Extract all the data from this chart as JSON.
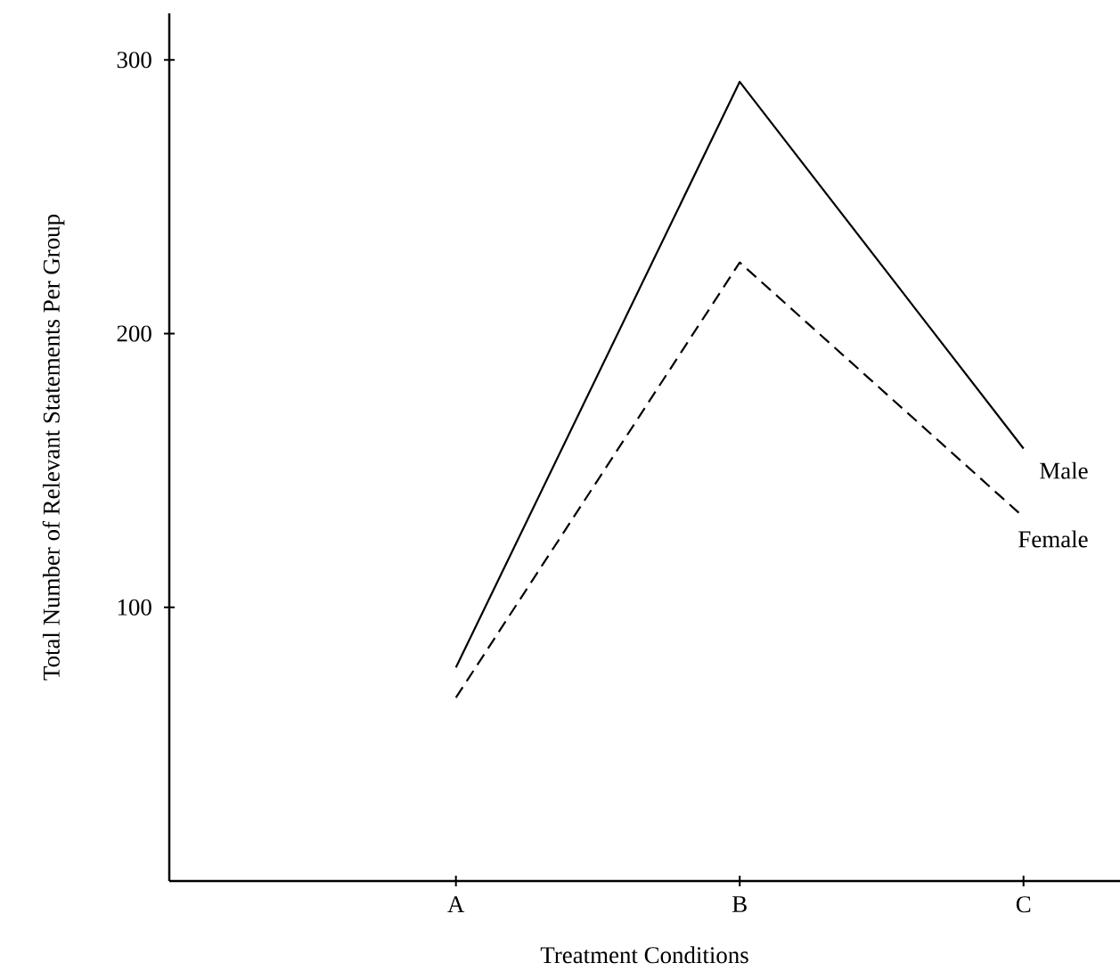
{
  "chart_data": {
    "type": "line",
    "xlabel": "Treatment Conditions",
    "ylabel": "Total Number of Relevant Statements Per Group",
    "categories": [
      "A",
      "B",
      "C"
    ],
    "series": [
      {
        "name": "Male",
        "color": "#000000",
        "line_style": "solid",
        "values": [
          78,
          292,
          158
        ]
      },
      {
        "name": "Female",
        "color": "#000000",
        "line_style": "dashed",
        "values": [
          67,
          226,
          133
        ]
      }
    ],
    "ylim": [
      0,
      317
    ],
    "yticks": [
      100,
      200,
      300
    ],
    "grid": false,
    "legend": false,
    "marker": "none"
  }
}
